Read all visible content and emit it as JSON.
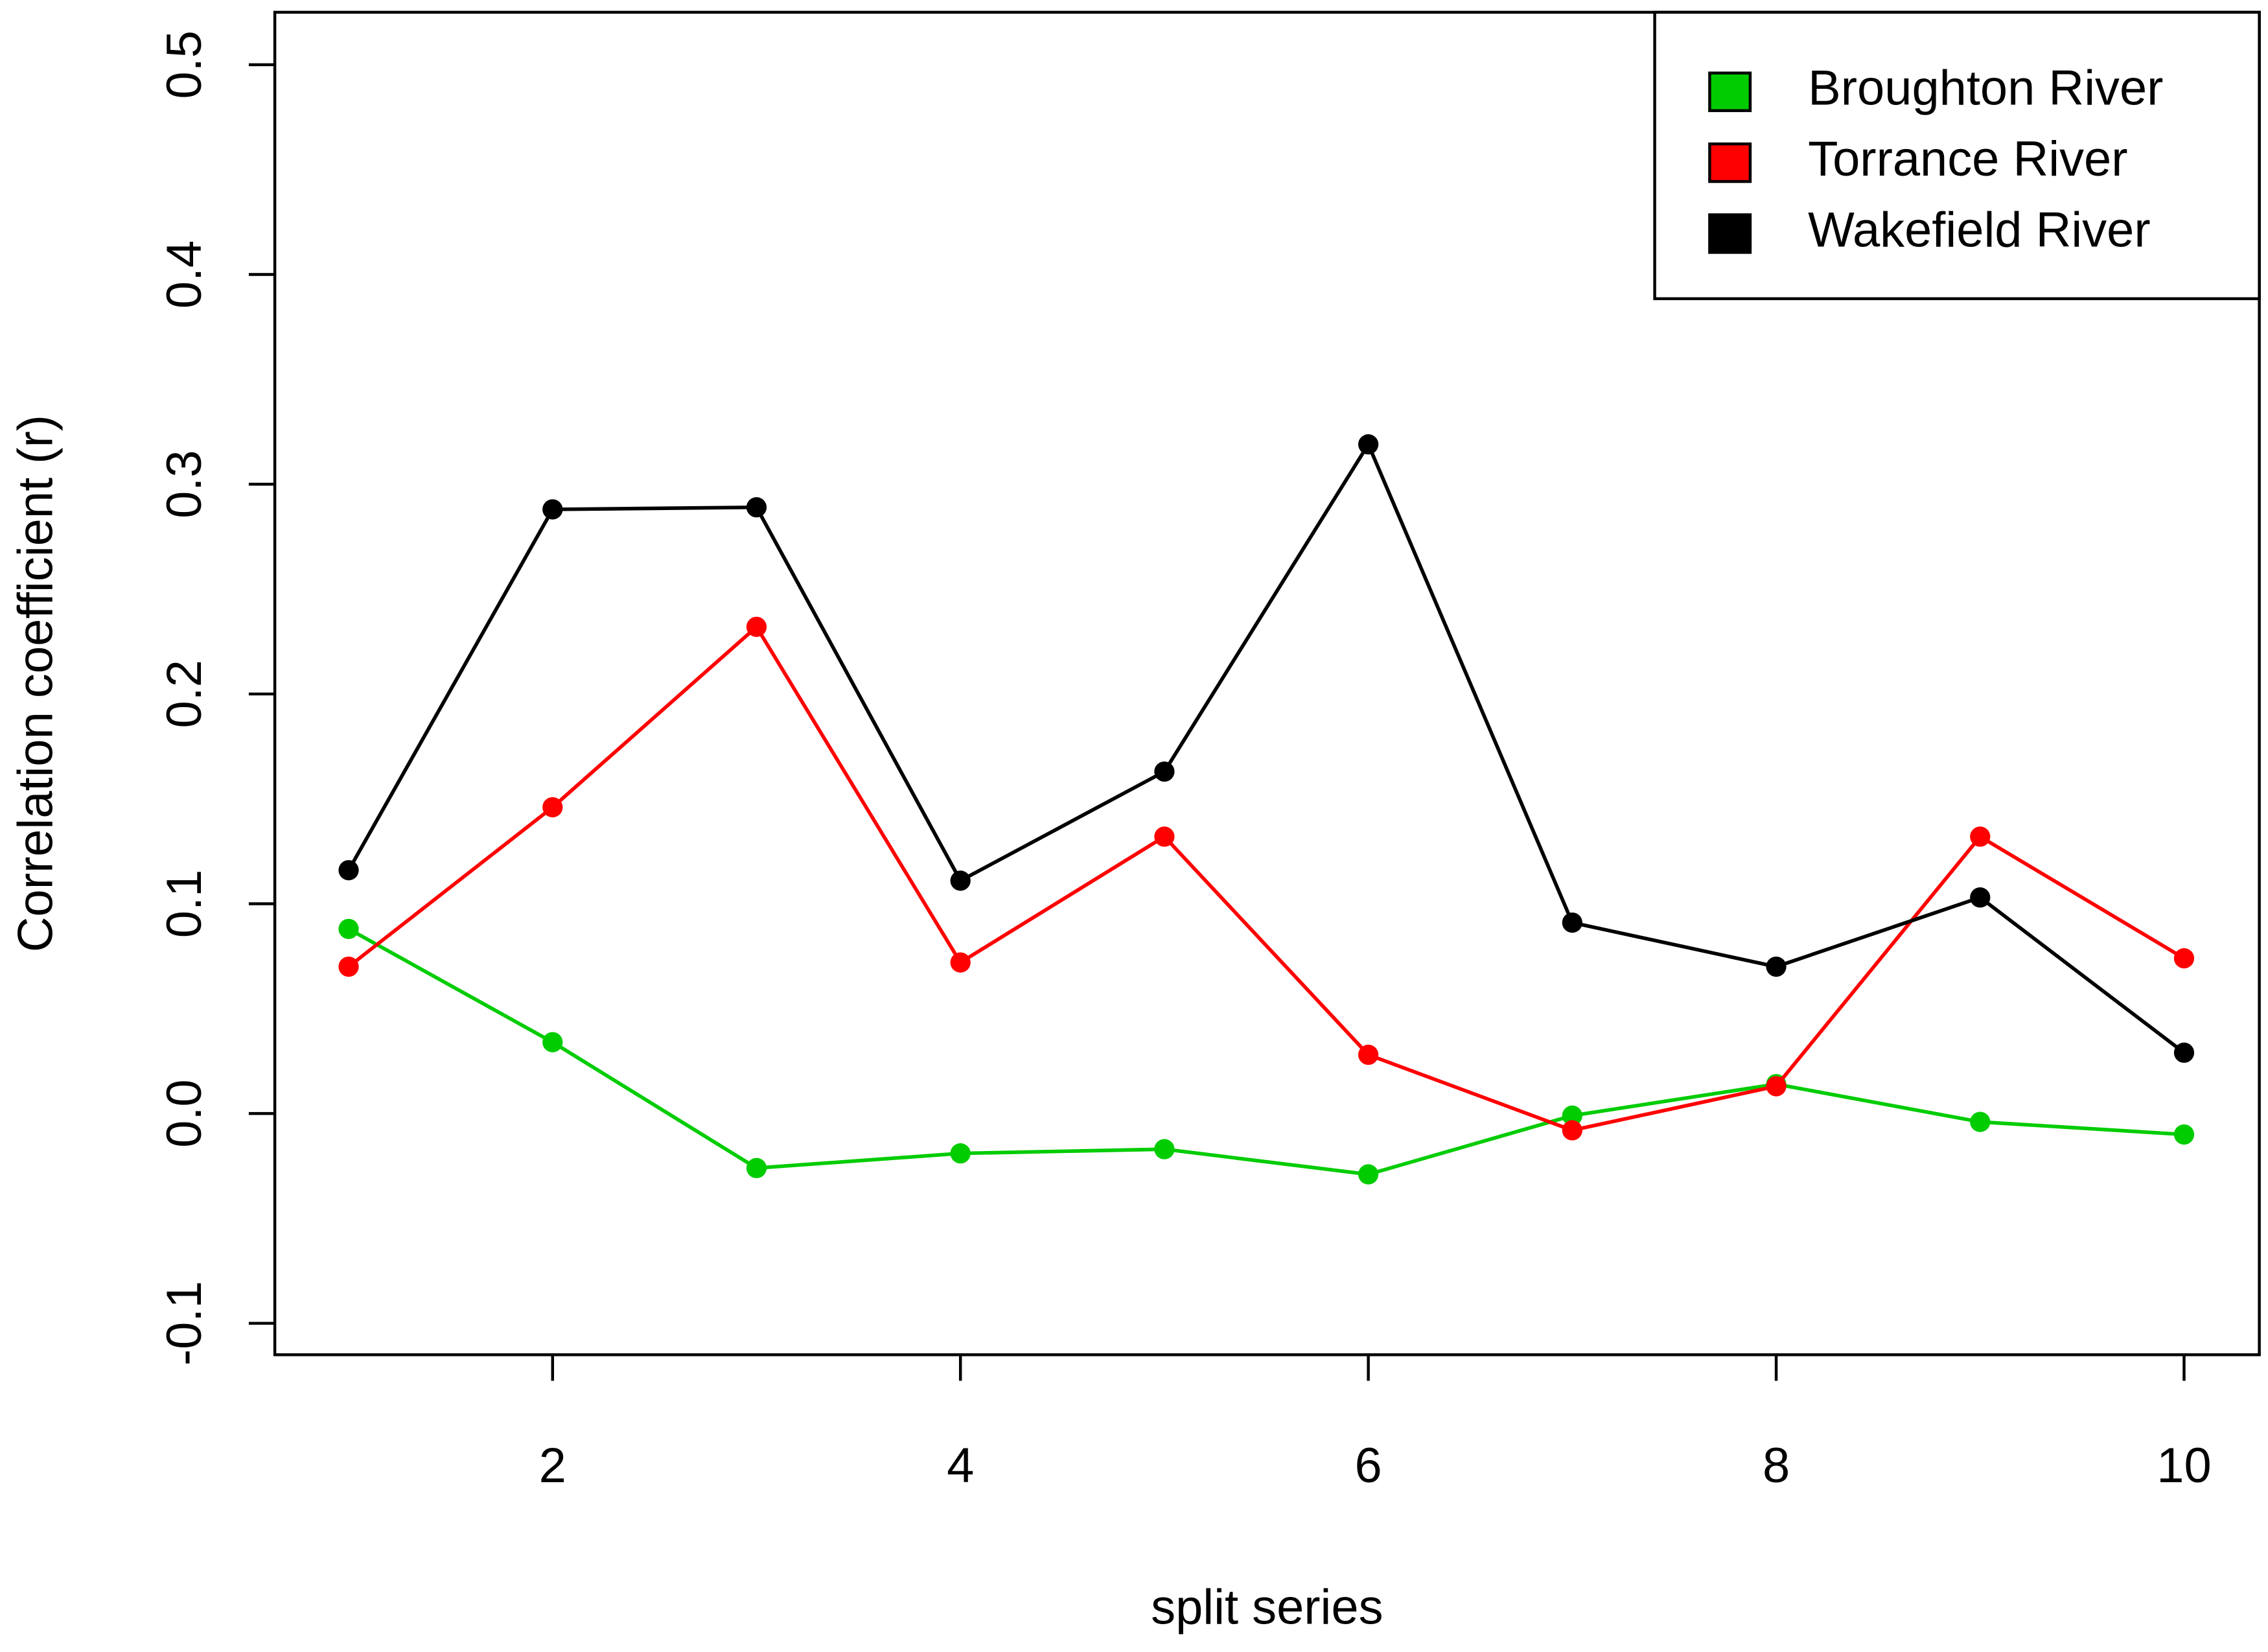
{
  "chart_data": {
    "type": "line",
    "x_label": "split series",
    "y_label": "Correlation coefficient (r)",
    "x": [
      1,
      2,
      3,
      4,
      5,
      6,
      7,
      8,
      9,
      10
    ],
    "series": [
      {
        "name": "Broughton River",
        "color": "#00cc00",
        "values": [
          0.088,
          0.034,
          -0.026,
          -0.019,
          -0.017,
          -0.029,
          -0.001,
          0.014,
          -0.004,
          -0.01
        ]
      },
      {
        "name": "Torrance River",
        "color": "#ff0000",
        "values": [
          0.07,
          0.146,
          0.232,
          0.072,
          0.132,
          0.028,
          -0.008,
          0.013,
          0.132,
          0.074
        ]
      },
      {
        "name": "Wakefield River",
        "color": "#000000",
        "values": [
          0.116,
          0.288,
          0.289,
          0.111,
          0.163,
          0.319,
          0.091,
          0.07,
          0.103,
          0.029
        ]
      }
    ],
    "xlim": [
      0.638,
      10.369
    ],
    "ylim": [
      -0.115,
      0.525
    ],
    "xticks": [
      2,
      4,
      6,
      8,
      10
    ],
    "yticks": [
      -0.1,
      {
        "value": 0,
        "label": "0.0"
      },
      0.1,
      0.2,
      0.3,
      0.4,
      0.5
    ],
    "grid": false,
    "legend": "top-right"
  }
}
